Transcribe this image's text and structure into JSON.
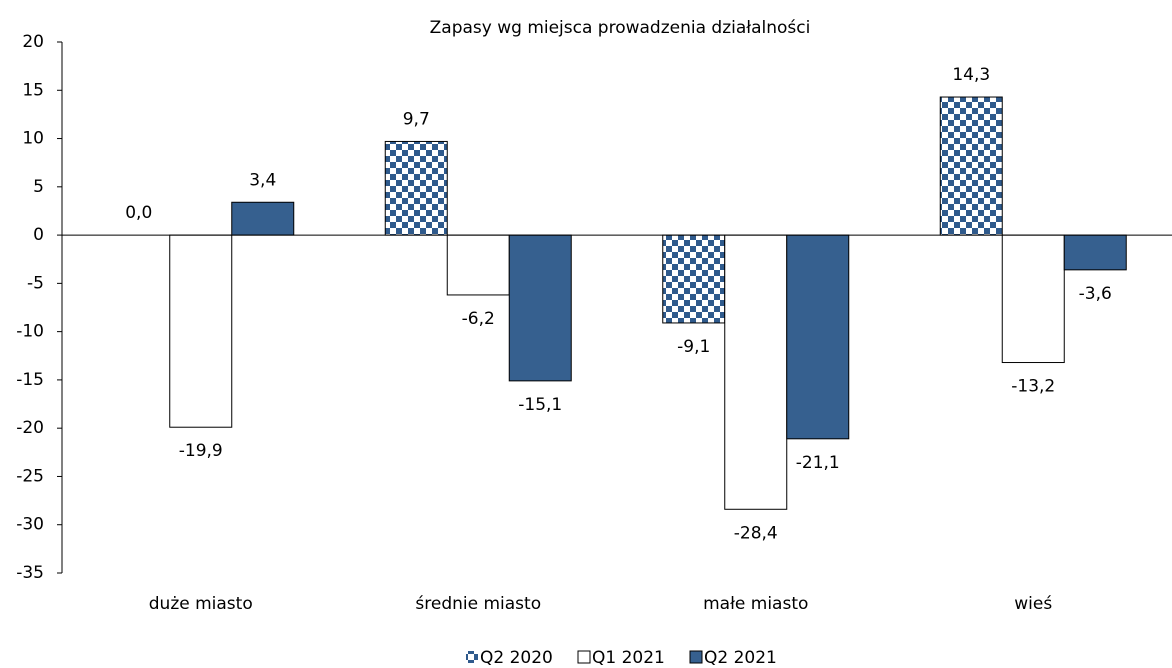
{
  "chart_data": {
    "type": "bar",
    "title": "Zapasy wg miejsca prowadzenia działalności",
    "categories": [
      "duże miasto",
      "średnie miasto",
      "małe miasto",
      "wieś"
    ],
    "series": [
      {
        "name": "Q2 2020",
        "color": "#2f5a8c",
        "pattern": "checker",
        "values": [
          0.0,
          9.7,
          -9.1,
          14.3
        ],
        "value_labels": [
          "0,0",
          "9,7",
          "-9,1",
          "14,3"
        ]
      },
      {
        "name": "Q1 2021",
        "color": "#ffffff",
        "values": [
          -19.9,
          -6.2,
          -28.4,
          -13.2
        ],
        "value_labels": [
          "-19,9",
          "-6,2",
          "-28,4",
          "-13,2"
        ]
      },
      {
        "name": "Q2 2021",
        "color": "#36608f",
        "values": [
          3.4,
          -15.1,
          -21.1,
          -3.6
        ],
        "value_labels": [
          "3,4",
          "-15,1",
          "-21,1",
          "-3,6"
        ]
      }
    ],
    "ylim": [
      -35,
      20
    ],
    "yticks": [
      -35,
      -30,
      -25,
      -20,
      -15,
      -10,
      -5,
      0,
      5,
      10,
      15,
      20
    ],
    "grid": false,
    "legend": "bottom"
  }
}
